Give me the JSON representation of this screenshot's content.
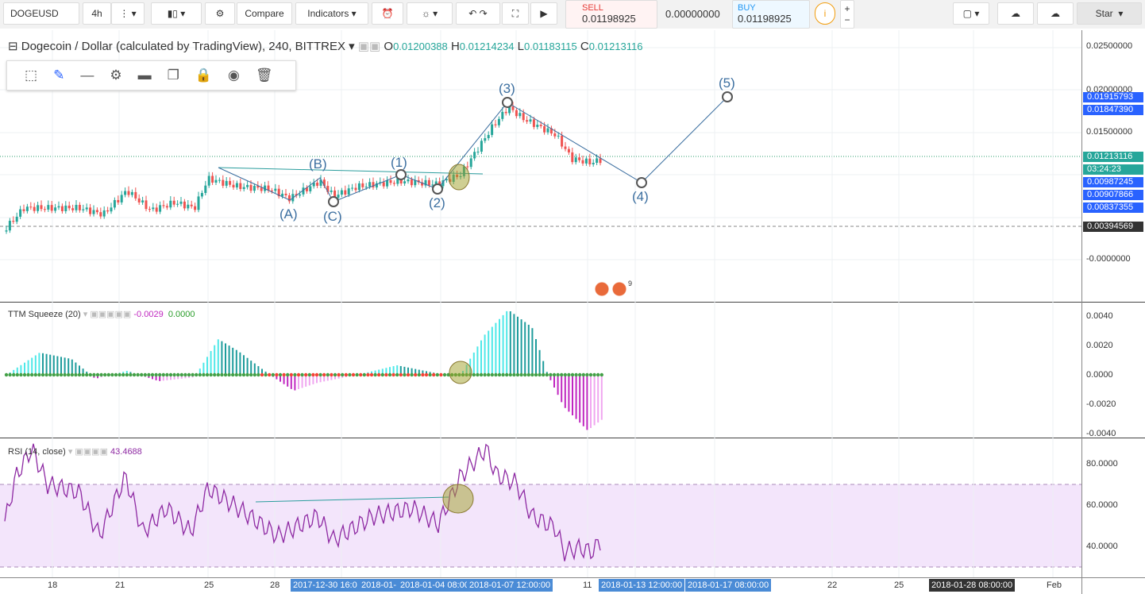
{
  "toolbar": {
    "symbol": "DOGEUSD",
    "interval": "4h",
    "compare": "Compare",
    "indicators": "Indicators",
    "sell_label": "SELL",
    "sell_price": "0.01198925",
    "spread": "0.00000000",
    "buy_label": "BUY",
    "buy_price": "0.01198925",
    "star": "Star"
  },
  "header": {
    "title": "Dogecoin / Dollar (calculated by TradingView), 240, BITTREX",
    "o_label": "O",
    "o": "0.01200388",
    "h_label": "H",
    "h": "0.01214234",
    "l_label": "L",
    "l": "0.01183115",
    "c_label": "C",
    "c": "0.01213116"
  },
  "price_axis": [
    "0.02500000",
    "0.02000000",
    "0.01915793",
    "0.01847390",
    "0.01500000",
    "0.01213116",
    "03:24:23",
    "0.00987245",
    "0.00907866",
    "0.00837355",
    "0.00394569",
    "-0.0000000"
  ],
  "waves": [
    "(A)",
    "(B)",
    "(C)",
    "(1)",
    "(2)",
    "(3)",
    "(4)",
    "(5)"
  ],
  "badge": "9",
  "ttm": {
    "label": "TTM Squeeze (20)",
    "v1": "-0.0029",
    "v2": "0.0000",
    "axis": [
      "0.0040",
      "0.0020",
      "0.0000",
      "-0.0020",
      "-0.0040"
    ]
  },
  "rsi": {
    "label": "RSI (14, close)",
    "value": "43.4688",
    "axis": [
      "80.0000",
      "60.0000",
      "40.0000"
    ]
  },
  "time_axis": [
    "18",
    "21",
    "25",
    "28",
    "2017-12-30 16:0",
    "2018-01-",
    "2018-01-04 08:00",
    "2018-01-07 12:00:00",
    "11",
    "2018-01-13 12:00:00",
    "2018-01-17 08:00:00",
    "22",
    "25",
    "2018-01-28 08:00:00",
    "Feb"
  ]
}
